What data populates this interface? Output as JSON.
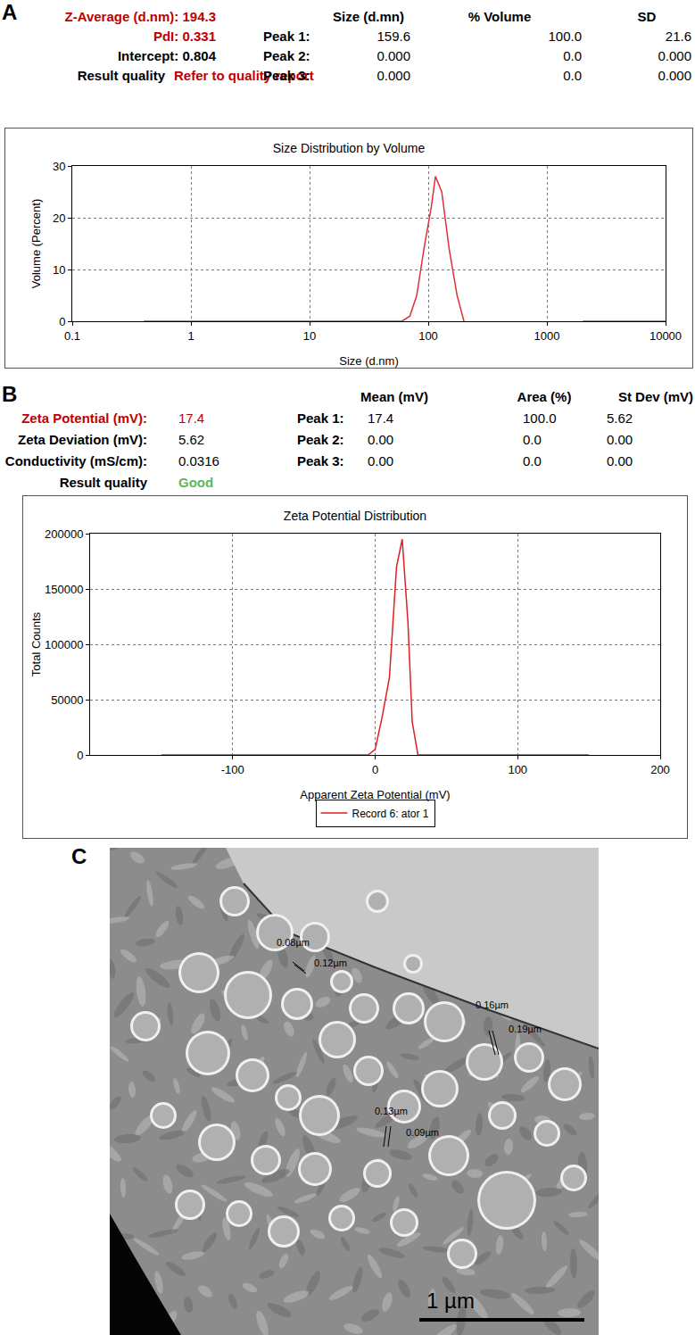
{
  "chart_data": [
    {
      "panel": "A",
      "type": "line",
      "title": "Size Distribution by Volume",
      "x_label": "Size (d.nm)",
      "y_label": "Volume (Percent)",
      "x": [
        0.4,
        60,
        70,
        80,
        92,
        106,
        115,
        130,
        150,
        175,
        200,
        1000,
        2000,
        10000
      ],
      "values": [
        0,
        0,
        1,
        5,
        14,
        22,
        28,
        25,
        14,
        5,
        0,
        null,
        0,
        0
      ],
      "color": "#e0303a",
      "line_style": "solid",
      "log": "x",
      "grid": true,
      "xlim": [
        0.1,
        10000
      ],
      "xticks": [
        0.1,
        1,
        10,
        100,
        1000,
        10000
      ],
      "ylim": [
        0,
        30
      ],
      "yticks": [
        0,
        10,
        20,
        30
      ]
    },
    {
      "panel": "B",
      "type": "line",
      "title": "Zeta Potential Distribution",
      "x_label": "Apparent Zeta Potential (mV)",
      "y_label": "Total Counts",
      "x": [
        -150,
        -5,
        0,
        5,
        10,
        15,
        19,
        23,
        26,
        30,
        150
      ],
      "series": [
        {
          "name": "Record 6: ator 1",
          "color": "#e02020",
          "values": [
            0,
            0,
            5000,
            35000,
            70000,
            170000,
            195000,
            120000,
            30000,
            0,
            0
          ]
        }
      ],
      "line_style": "solid",
      "grid": true,
      "legend": "bottom",
      "xlim": [
        -200,
        200
      ],
      "xticks": [
        -100,
        0,
        100,
        200
      ],
      "ylim": [
        0,
        200000
      ],
      "yticks": [
        0,
        50000,
        100000,
        150000,
        200000
      ]
    }
  ],
  "panels": {
    "A": {
      "label": "A",
      "summary": [
        {
          "label": "Z-Average (d.nm):",
          "value": "194.3",
          "color": "#c00000"
        },
        {
          "label": "PdI:",
          "value": "0.331",
          "color": "#c00000"
        },
        {
          "label": "Intercept:",
          "value": "0.804",
          "color": "#000000"
        }
      ],
      "quality": {
        "label": "Result quality",
        "value": "Refer to quality report",
        "color": "#c00000"
      },
      "table": {
        "header": [
          "Size (d.mn)",
          "% Volume",
          "SD"
        ],
        "rows": [
          [
            "Peak 1:",
            "159.6",
            "100.0",
            "21.6"
          ],
          [
            "Peak 2:",
            "0.000",
            "0.0",
            "0.000"
          ],
          [
            "Peak 3:",
            "0.000",
            "0.0",
            "0.000"
          ]
        ]
      }
    },
    "B": {
      "label": "B",
      "summary": [
        {
          "label": "Zeta Potential (mV):",
          "value": "17.4",
          "color": "#c00000"
        },
        {
          "label": "Zeta Deviation (mV):",
          "value": "5.62",
          "color": "#000000"
        },
        {
          "label": "Conductivity (mS/cm):",
          "value": "0.0316",
          "color": "#000000"
        }
      ],
      "quality": {
        "label": "Result quality",
        "value": "Good",
        "color": "#5cb85c"
      },
      "table": {
        "header": [
          "Mean (mV)",
          "Area (%)",
          "St Dev (mV)"
        ],
        "rows": [
          [
            "Peak 1:",
            "17.4",
            "100.0",
            "5.62"
          ],
          [
            "Peak 2:",
            "0.00",
            "0.0",
            "0.00"
          ],
          [
            "Peak 3:",
            "0.00",
            "0.0",
            "0.00"
          ]
        ]
      }
    },
    "C": {
      "label": "C",
      "measurements": [
        "0.08µm",
        "0.12µm",
        "0.16µm",
        "0.19µm",
        "0.13µm",
        "0.09µm"
      ],
      "scale_bar": "1 µm"
    }
  }
}
